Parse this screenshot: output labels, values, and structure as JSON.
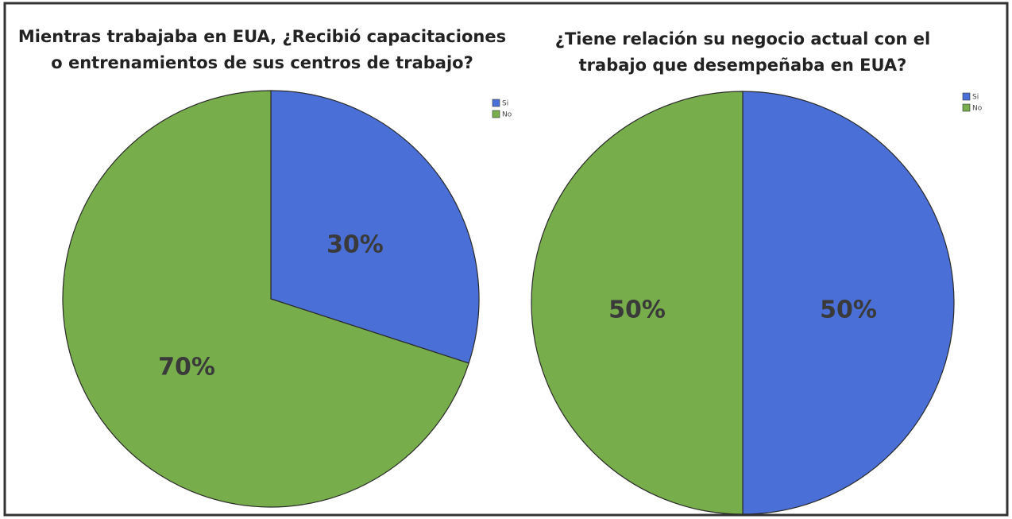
{
  "chart_data": [
    {
      "type": "pie",
      "title": [
        "Mientras trabajaba en EUA, ¿Recibió capacitaciones",
        "o entrenamientos de sus centros de trabajo?"
      ],
      "categories": [
        "Si",
        "No"
      ],
      "values": [
        30,
        70
      ],
      "value_labels": [
        "30%",
        "70%"
      ],
      "colors": [
        "#4a6fd6",
        "#77ad4b"
      ],
      "legend": "top-right"
    },
    {
      "type": "pie",
      "title": [
        "¿Tiene relación su negocio actual con el",
        "trabajo que desempeñaba en EUA?"
      ],
      "categories": [
        "Si",
        "No"
      ],
      "values": [
        50,
        50
      ],
      "value_labels": [
        "50%",
        "50%"
      ],
      "colors": [
        "#4a6fd6",
        "#77ad4b"
      ],
      "legend": "top-right"
    }
  ]
}
